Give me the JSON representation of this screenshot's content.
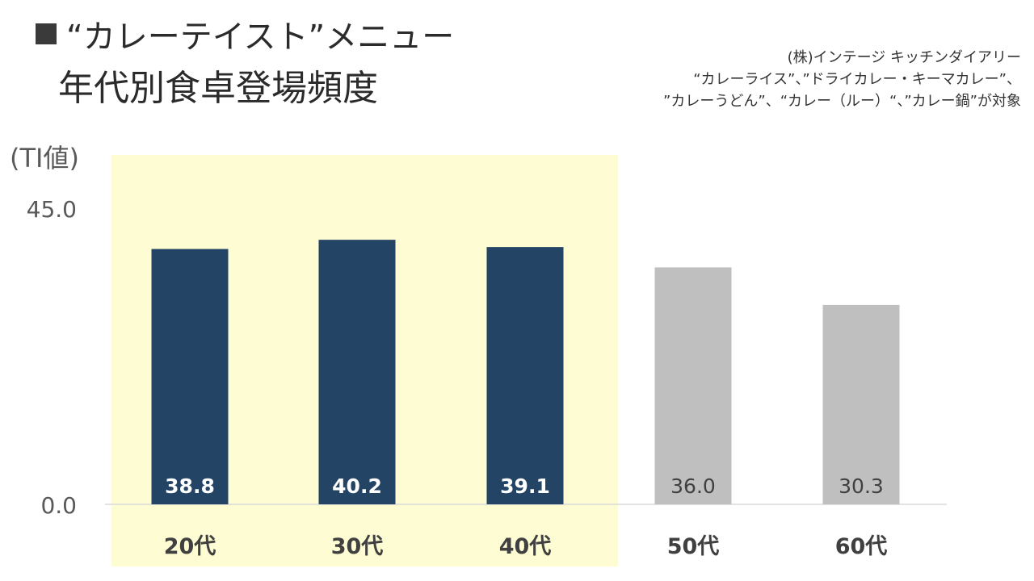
{
  "header": {
    "title_line1": "“カレーテイスト”メニュー",
    "title_line2": "年代別食卓登場頻度"
  },
  "source": {
    "line1": "(株)インテージ キッチンダイアリー",
    "line2": "“カレーライス”、”ドライカレー・キーマカレー”、",
    "line3": "”カレーうどん”、“カレー（ルー）“、”カレー鍋”が対象"
  },
  "chart_data": {
    "type": "bar",
    "ylabel": "(TI値)",
    "ylim": [
      0,
      45
    ],
    "yticks": [
      "45.0",
      "0.0"
    ],
    "categories": [
      "20代",
      "30代",
      "40代",
      "50代",
      "60代"
    ],
    "values": [
      38.8,
      40.2,
      39.1,
      36.0,
      30.3
    ],
    "value_labels": [
      "38.8",
      "40.2",
      "39.1",
      "36.0",
      "30.3"
    ],
    "highlighted_categories": [
      "20代",
      "30代",
      "40代"
    ],
    "colors": {
      "highlight_bar": "#244466",
      "normal_bar": "#bfbfbf",
      "highlight_band": "#fdfcd3",
      "highlight_label": "#ffffff",
      "normal_label": "#404040",
      "axis": "#d9d9d9",
      "tick_label": "#595959"
    },
    "grid": false
  }
}
